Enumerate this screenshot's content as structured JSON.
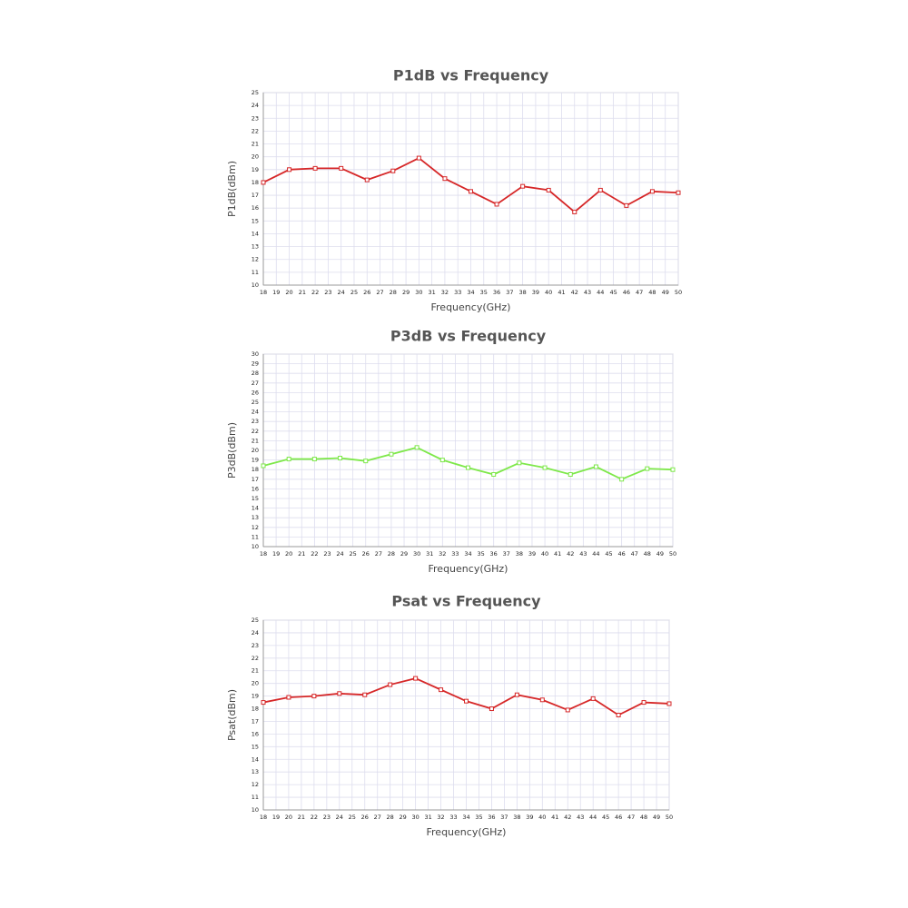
{
  "chart_data": [
    {
      "type": "line",
      "title": "P1dB vs Frequency",
      "xlabel": "Frequency(GHz)",
      "ylabel": "P1dB(dBm)",
      "color": "#d62728",
      "grid": true,
      "x": [
        18,
        20,
        22,
        24,
        26,
        28,
        30,
        32,
        34,
        36,
        38,
        40,
        42,
        44,
        46,
        48,
        50
      ],
      "values": [
        18.0,
        19.0,
        19.1,
        19.1,
        18.2,
        18.9,
        19.9,
        18.3,
        17.3,
        16.3,
        17.7,
        17.4,
        15.7,
        17.4,
        16.2,
        17.3,
        17.2
      ],
      "xlim": [
        18,
        50
      ],
      "xticks": [
        18,
        19,
        20,
        21,
        22,
        23,
        24,
        25,
        26,
        27,
        28,
        29,
        30,
        31,
        32,
        33,
        34,
        35,
        36,
        37,
        38,
        39,
        40,
        41,
        42,
        43,
        44,
        45,
        46,
        47,
        48,
        49,
        50
      ],
      "ylim": [
        10,
        25
      ],
      "yticks": [
        10,
        11,
        12,
        13,
        14,
        15,
        16,
        17,
        18,
        19,
        20,
        21,
        22,
        23,
        24,
        25
      ]
    },
    {
      "type": "line",
      "title": "P3dB vs Frequency",
      "xlabel": "Frequency(GHz)",
      "ylabel": "P3dB(dBm)",
      "color": "#7ee84a",
      "grid": true,
      "x": [
        18,
        20,
        22,
        24,
        26,
        28,
        30,
        32,
        34,
        36,
        38,
        40,
        42,
        44,
        46,
        48,
        50
      ],
      "values": [
        18.4,
        19.1,
        19.1,
        19.2,
        18.9,
        19.6,
        20.3,
        19.0,
        18.2,
        17.5,
        18.7,
        18.2,
        17.5,
        18.3,
        17.0,
        18.1,
        18.0
      ],
      "xlim": [
        18,
        50
      ],
      "xticks": [
        18,
        19,
        20,
        21,
        22,
        23,
        24,
        25,
        26,
        27,
        28,
        29,
        30,
        31,
        32,
        33,
        34,
        35,
        36,
        37,
        38,
        39,
        40,
        41,
        42,
        43,
        44,
        45,
        46,
        47,
        48,
        49,
        50
      ],
      "ylim": [
        10,
        30
      ],
      "yticks": [
        10,
        11,
        12,
        13,
        14,
        15,
        16,
        17,
        18,
        19,
        20,
        21,
        22,
        23,
        24,
        25,
        26,
        27,
        28,
        29,
        30
      ]
    },
    {
      "type": "line",
      "title": "Psat vs Frequency",
      "xlabel": "Frequency(GHz)",
      "ylabel": "Psat(dBm)",
      "color": "#d62728",
      "grid": true,
      "x": [
        18,
        20,
        22,
        24,
        26,
        28,
        30,
        32,
        34,
        36,
        38,
        40,
        42,
        44,
        46,
        48,
        50
      ],
      "values": [
        18.5,
        18.9,
        19.0,
        19.2,
        19.1,
        19.9,
        20.4,
        19.5,
        18.6,
        18.0,
        19.1,
        18.7,
        17.9,
        18.8,
        17.5,
        18.5,
        18.4
      ],
      "xlim": [
        18,
        50
      ],
      "xticks": [
        18,
        19,
        20,
        21,
        22,
        23,
        24,
        25,
        26,
        27,
        28,
        29,
        30,
        31,
        32,
        33,
        34,
        35,
        36,
        37,
        38,
        39,
        40,
        41,
        42,
        43,
        44,
        45,
        46,
        47,
        48,
        49,
        50
      ],
      "ylim": [
        10,
        25
      ],
      "yticks": [
        10,
        11,
        12,
        13,
        14,
        15,
        16,
        17,
        18,
        19,
        20,
        21,
        22,
        23,
        24,
        25
      ]
    }
  ]
}
